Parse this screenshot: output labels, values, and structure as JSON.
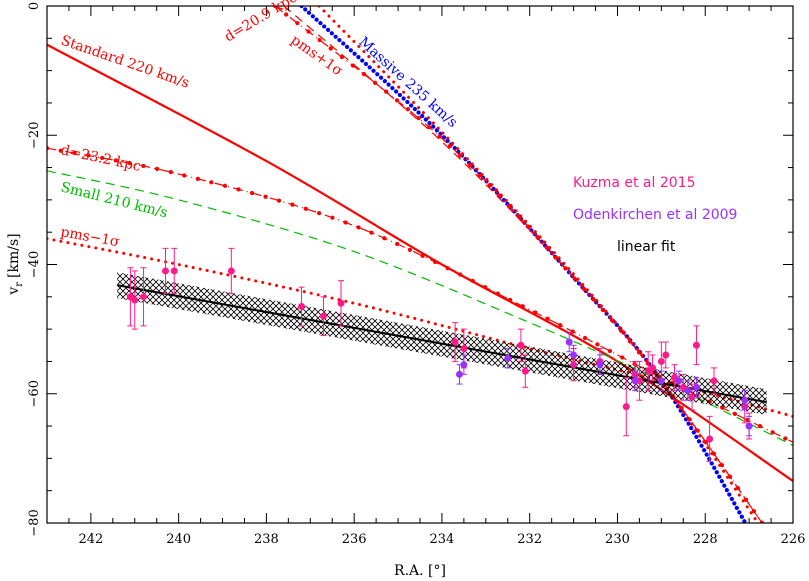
{
  "chart_data": {
    "type": "scatter",
    "xlabel": "R.A. [°]",
    "ylabel_main": "v",
    "ylabel_sub": "r",
    "ylabel_unit": "[km/s]",
    "xlim": [
      243,
      226
    ],
    "ylim": [
      -80,
      0
    ],
    "xticks": [
      242,
      240,
      238,
      236,
      234,
      232,
      230,
      228,
      226
    ],
    "yticks": [
      0,
      -20,
      -40,
      -60,
      -80
    ],
    "grid": false,
    "legend_position": "right",
    "legend": [
      {
        "label": "Kuzma et al 2015",
        "color": "#ff1a8c"
      },
      {
        "label": "Odenkirchen et al 2009",
        "color": "#9b30ff"
      },
      {
        "label": "linear fit",
        "color": "#000000"
      }
    ],
    "curve_labels": {
      "standard": "Standard 220 km/s",
      "massive": "Massive 235 km/s",
      "small": "Small 210 km/s",
      "d209": "d=20.9 kpc",
      "d232": "d=23.2 kpc",
      "pms_plus": "pms+1σ",
      "pms_minus": "pms−1σ"
    },
    "models": [
      {
        "id": "standard",
        "style": "solid",
        "color": "#ff0000",
        "x": [
          243,
          238,
          234,
          230,
          226
        ],
        "y": [
          -6,
          -24,
          -40,
          -55,
          -73.5
        ]
      },
      {
        "id": "massive",
        "style": "dense-dotted",
        "color": "#0000ff",
        "x": [
          237.2,
          234,
          231,
          229,
          227
        ],
        "y": [
          0,
          -20,
          -42,
          -58,
          -81
        ]
      },
      {
        "id": "d209",
        "style": "dash-dot",
        "color": "#ff0000",
        "x": [
          237.8,
          234,
          231,
          229,
          226.6
        ],
        "y": [
          0,
          -20.5,
          -42,
          -58,
          -81
        ]
      },
      {
        "id": "pms_plus",
        "style": "dotted",
        "color": "#ff0000",
        "x": [
          236.8,
          234,
          231,
          229,
          226.7
        ],
        "y": [
          0,
          -19.5,
          -41.5,
          -58,
          -81
        ]
      },
      {
        "id": "pms_plus_dashed",
        "style": "dashed",
        "color": "#ff0000",
        "x": [
          237.6,
          234,
          231,
          229,
          226.6
        ],
        "y": [
          0,
          -21,
          -42,
          -58,
          -81
        ]
      },
      {
        "id": "d232",
        "style": "dash-dot",
        "color": "#ff0000",
        "x": [
          243,
          240,
          236,
          232,
          229,
          226
        ],
        "y": [
          -22,
          -26,
          -34,
          -47,
          -57.5,
          -67.5
        ]
      },
      {
        "id": "small",
        "style": "dashed",
        "color": "#00bb00",
        "x": [
          243,
          240,
          236,
          232,
          229,
          226
        ],
        "y": [
          -25.5,
          -30,
          -38,
          -49,
          -58,
          -68
        ]
      },
      {
        "id": "pms_minus",
        "style": "dotted",
        "color": "#ff0000",
        "x": [
          243,
          240,
          236,
          232,
          229,
          226
        ],
        "y": [
          -36,
          -40,
          -46,
          -53,
          -58,
          -63.5
        ]
      }
    ],
    "linear_fit": {
      "x": [
        241.4,
        226.6
      ],
      "y": [
        -43.2,
        -61.3
      ],
      "band_halfwidth": 2.0
    },
    "series": [
      {
        "name": "Kuzma et al 2015",
        "color": "#ff1a8c",
        "points": [
          {
            "x": 241.1,
            "y": -45.0,
            "err": 4.5
          },
          {
            "x": 241.0,
            "y": -45.5,
            "err": 4.5
          },
          {
            "x": 240.8,
            "y": -45.0,
            "err": 4.5
          },
          {
            "x": 240.3,
            "y": -41.0,
            "err": 3.5
          },
          {
            "x": 240.1,
            "y": -41.0,
            "err": 3.5
          },
          {
            "x": 238.8,
            "y": -41.0,
            "err": 3.5
          },
          {
            "x": 237.2,
            "y": -46.5,
            "err": 3.0
          },
          {
            "x": 236.7,
            "y": -48.0,
            "err": 3.0
          },
          {
            "x": 236.3,
            "y": -46.0,
            "err": 3.5
          },
          {
            "x": 233.7,
            "y": -52.0,
            "err": 3.0
          },
          {
            "x": 233.5,
            "y": -53.0,
            "err": 3.0
          },
          {
            "x": 232.2,
            "y": -52.5,
            "err": 2.5
          },
          {
            "x": 232.1,
            "y": -56.5,
            "err": 2.5
          },
          {
            "x": 231.0,
            "y": -55.5,
            "err": 2.5
          },
          {
            "x": 230.4,
            "y": -55.0,
            "err": 2.0
          },
          {
            "x": 229.8,
            "y": -62.0,
            "err": 4.5
          },
          {
            "x": 229.6,
            "y": -57.0,
            "err": 2.0
          },
          {
            "x": 229.5,
            "y": -58.0,
            "err": 3.0
          },
          {
            "x": 229.3,
            "y": -56.5,
            "err": 3.0
          },
          {
            "x": 229.2,
            "y": -56.0,
            "err": 2.0
          },
          {
            "x": 229.0,
            "y": -55.0,
            "err": 3.0
          },
          {
            "x": 228.9,
            "y": -54.0,
            "err": 2.0
          },
          {
            "x": 228.7,
            "y": -57.5,
            "err": 2.0
          },
          {
            "x": 228.5,
            "y": -59.0,
            "err": 2.0
          },
          {
            "x": 228.3,
            "y": -60.5,
            "err": 2.0
          },
          {
            "x": 228.2,
            "y": -52.5,
            "err": 3.0
          },
          {
            "x": 227.9,
            "y": -67.0,
            "err": 3.5
          },
          {
            "x": 227.8,
            "y": -58.0,
            "err": 2.0
          },
          {
            "x": 227.1,
            "y": -62.0,
            "err": 2.5
          },
          {
            "x": 227.0,
            "y": -65.0,
            "err": 2.0
          }
        ]
      },
      {
        "name": "Odenkirchen et al 2009",
        "color": "#9b30ff",
        "points": [
          {
            "x": 233.6,
            "y": -57.0,
            "err": 1.5
          },
          {
            "x": 233.5,
            "y": -55.5,
            "err": 1.5
          },
          {
            "x": 232.5,
            "y": -54.5,
            "err": 1.5
          },
          {
            "x": 231.1,
            "y": -52.0,
            "err": 1.5
          },
          {
            "x": 231.0,
            "y": -54.0,
            "err": 1.5
          },
          {
            "x": 230.4,
            "y": -55.5,
            "err": 1.5
          },
          {
            "x": 229.6,
            "y": -58.0,
            "err": 1.5
          },
          {
            "x": 229.0,
            "y": -58.0,
            "err": 1.5
          },
          {
            "x": 228.6,
            "y": -58.0,
            "err": 1.5
          },
          {
            "x": 228.4,
            "y": -59.5,
            "err": 1.5
          },
          {
            "x": 228.2,
            "y": -59.0,
            "err": 1.5
          },
          {
            "x": 227.1,
            "y": -61.0,
            "err": 1.5
          },
          {
            "x": 227.0,
            "y": -65.0,
            "err": 1.5
          }
        ]
      }
    ]
  }
}
